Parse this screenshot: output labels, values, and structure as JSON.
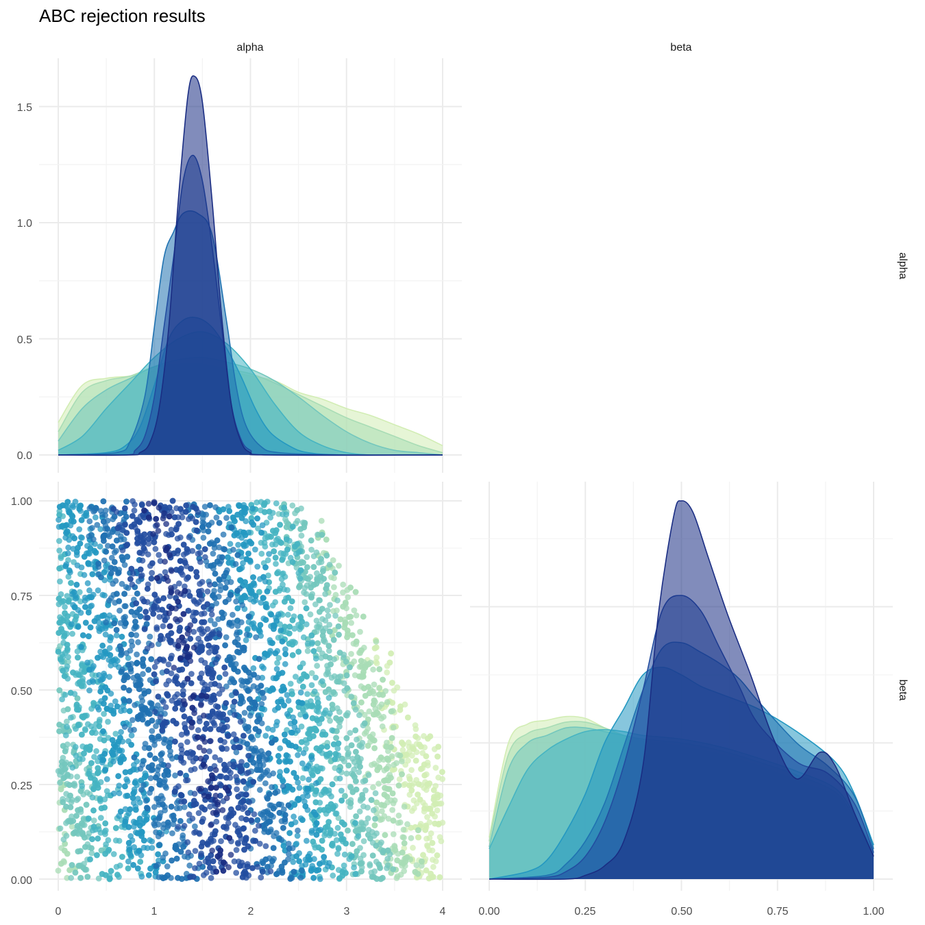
{
  "title": "ABC rejection results",
  "strips": {
    "col_alpha": "alpha",
    "col_beta": "beta",
    "row_alpha": "alpha",
    "row_beta": "beta"
  },
  "palette": [
    "#d2edb4",
    "#a8dcb5",
    "#74c7bd",
    "#45b4c2",
    "#2498c1",
    "#2072b1",
    "#234da0",
    "#1a2d83"
  ],
  "chart_data": [
    {
      "panel": "alpha-density",
      "type": "area",
      "xlim": [
        0,
        4
      ],
      "ylim": [
        0,
        1.65
      ],
      "x_ticks": [
        "0",
        "1",
        "2",
        "3",
        "4"
      ],
      "y_ticks": [
        "0.0",
        "0.5",
        "1.0",
        "1.5"
      ],
      "series": [
        {
          "x": [
            0,
            0.25,
            0.5,
            0.75,
            1,
            1.25,
            1.5,
            1.75,
            2,
            2.25,
            2.5,
            2.75,
            3,
            3.25,
            3.5,
            3.75,
            4
          ],
          "y": [
            0.14,
            0.3,
            0.33,
            0.34,
            0.36,
            0.37,
            0.37,
            0.36,
            0.34,
            0.32,
            0.27,
            0.24,
            0.2,
            0.17,
            0.13,
            0.09,
            0.04
          ]
        },
        {
          "x": [
            0,
            0.25,
            0.5,
            0.75,
            1,
            1.25,
            1.5,
            1.75,
            2,
            2.25,
            2.5,
            2.75,
            3,
            3.25,
            3.5,
            3.75,
            4
          ],
          "y": [
            0.1,
            0.27,
            0.32,
            0.34,
            0.38,
            0.39,
            0.39,
            0.37,
            0.35,
            0.31,
            0.26,
            0.21,
            0.16,
            0.12,
            0.08,
            0.04,
            0.01
          ]
        },
        {
          "x": [
            0,
            0.25,
            0.5,
            0.75,
            1,
            1.25,
            1.5,
            1.75,
            2,
            2.25,
            2.5,
            2.75,
            3,
            3.25,
            3.5,
            3.75,
            4
          ],
          "y": [
            0.06,
            0.2,
            0.28,
            0.33,
            0.38,
            0.41,
            0.42,
            0.4,
            0.37,
            0.32,
            0.25,
            0.17,
            0.1,
            0.05,
            0.02,
            0.01,
            0
          ]
        },
        {
          "x": [
            0,
            0.25,
            0.5,
            0.75,
            1,
            1.25,
            1.5,
            1.75,
            2,
            2.25,
            2.5,
            2.75,
            3,
            3.25,
            3.5,
            3.75,
            4
          ],
          "y": [
            0.02,
            0.08,
            0.2,
            0.31,
            0.42,
            0.5,
            0.53,
            0.48,
            0.37,
            0.22,
            0.1,
            0.04,
            0.01,
            0,
            0,
            0,
            0
          ]
        },
        {
          "x": [
            0,
            0.5,
            0.7,
            0.85,
            1,
            1.15,
            1.3,
            1.45,
            1.6,
            1.75,
            1.9,
            2.05,
            2.2,
            2.4,
            2.6,
            3,
            4
          ],
          "y": [
            0,
            0.01,
            0.04,
            0.12,
            0.3,
            0.5,
            0.58,
            0.59,
            0.55,
            0.46,
            0.34,
            0.2,
            0.1,
            0.04,
            0.01,
            0,
            0
          ]
        },
        {
          "x": [
            0,
            0.6,
            0.75,
            0.9,
            1,
            1.1,
            1.2,
            1.3,
            1.45,
            1.6,
            1.75,
            1.85,
            1.95,
            2.1,
            2.3,
            3,
            4
          ],
          "y": [
            0,
            0.01,
            0.06,
            0.25,
            0.55,
            0.85,
            0.96,
            1.04,
            1.04,
            0.95,
            0.58,
            0.3,
            0.13,
            0.04,
            0.01,
            0,
            0
          ]
        },
        {
          "x": [
            0,
            0.7,
            0.8,
            0.9,
            1,
            1.1,
            1.2,
            1.3,
            1.4,
            1.5,
            1.6,
            1.7,
            1.8,
            1.9,
            2,
            2.2,
            4
          ],
          "y": [
            0,
            0,
            0.02,
            0.08,
            0.25,
            0.55,
            0.85,
            1.18,
            1.29,
            1.18,
            0.9,
            0.55,
            0.22,
            0.07,
            0.02,
            0,
            0
          ]
        },
        {
          "x": [
            0,
            0.75,
            0.85,
            0.95,
            1.05,
            1.15,
            1.25,
            1.35,
            1.42,
            1.5,
            1.6,
            1.7,
            1.8,
            1.9,
            2,
            2.2,
            4
          ],
          "y": [
            0,
            0,
            0.01,
            0.05,
            0.2,
            0.55,
            1.1,
            1.55,
            1.63,
            1.52,
            1.1,
            0.6,
            0.22,
            0.06,
            0.01,
            0,
            0
          ]
        }
      ]
    },
    {
      "panel": "beta-density",
      "type": "area",
      "xlim": [
        0,
        1
      ],
      "ylim": [
        0,
        2.0
      ],
      "x_ticks": [
        "0.00",
        "0.25",
        "0.50",
        "0.75",
        "1.00"
      ],
      "series": [
        {
          "x": [
            0,
            0.05,
            0.1,
            0.15,
            0.2,
            0.25,
            0.3,
            0.35,
            0.4,
            0.5,
            0.6,
            0.7,
            0.8,
            0.9,
            0.95,
            1
          ],
          "y": [
            0.22,
            0.72,
            0.82,
            0.84,
            0.86,
            0.85,
            0.8,
            0.76,
            0.72,
            0.68,
            0.64,
            0.58,
            0.5,
            0.42,
            0.3,
            0.12
          ]
        },
        {
          "x": [
            0,
            0.05,
            0.1,
            0.15,
            0.2,
            0.25,
            0.3,
            0.35,
            0.4,
            0.5,
            0.6,
            0.7,
            0.8,
            0.9,
            0.95,
            1
          ],
          "y": [
            0.2,
            0.66,
            0.77,
            0.8,
            0.83,
            0.83,
            0.8,
            0.76,
            0.73,
            0.7,
            0.66,
            0.6,
            0.52,
            0.44,
            0.3,
            0.12
          ]
        },
        {
          "x": [
            0,
            0.05,
            0.1,
            0.15,
            0.2,
            0.25,
            0.3,
            0.35,
            0.4,
            0.5,
            0.6,
            0.7,
            0.8,
            0.9,
            0.95,
            1
          ],
          "y": [
            0.17,
            0.58,
            0.72,
            0.76,
            0.8,
            0.8,
            0.78,
            0.76,
            0.74,
            0.72,
            0.68,
            0.62,
            0.55,
            0.46,
            0.32,
            0.12
          ]
        },
        {
          "x": [
            0,
            0.05,
            0.1,
            0.15,
            0.2,
            0.25,
            0.3,
            0.35,
            0.4,
            0.5,
            0.6,
            0.7,
            0.8,
            0.9,
            0.95,
            1
          ],
          "y": [
            0.16,
            0.38,
            0.58,
            0.68,
            0.74,
            0.78,
            0.79,
            0.78,
            0.76,
            0.74,
            0.7,
            0.64,
            0.57,
            0.48,
            0.34,
            0.14
          ]
        },
        {
          "x": [
            0,
            0.1,
            0.15,
            0.2,
            0.25,
            0.3,
            0.35,
            0.4,
            0.45,
            0.5,
            0.55,
            0.6,
            0.7,
            0.8,
            0.9,
            0.95,
            1
          ],
          "y": [
            0,
            0.04,
            0.1,
            0.25,
            0.45,
            0.72,
            0.9,
            1.08,
            1.12,
            1.08,
            1.02,
            0.98,
            0.9,
            0.78,
            0.62,
            0.45,
            0.18
          ]
        },
        {
          "x": [
            0,
            0.15,
            0.2,
            0.25,
            0.3,
            0.35,
            0.4,
            0.45,
            0.5,
            0.55,
            0.6,
            0.65,
            0.7,
            0.8,
            0.88,
            0.95,
            1
          ],
          "y": [
            0,
            0.02,
            0.08,
            0.2,
            0.4,
            0.7,
            1.0,
            1.22,
            1.25,
            1.2,
            1.14,
            1.06,
            0.94,
            0.72,
            0.6,
            0.44,
            0.16
          ]
        },
        {
          "x": [
            0,
            0.15,
            0.2,
            0.25,
            0.3,
            0.35,
            0.4,
            0.45,
            0.5,
            0.55,
            0.6,
            0.65,
            0.7,
            0.8,
            0.88,
            0.95,
            1
          ],
          "y": [
            0,
            0.01,
            0.04,
            0.12,
            0.3,
            0.6,
            1.0,
            1.42,
            1.5,
            1.42,
            1.22,
            1.02,
            0.82,
            0.62,
            0.56,
            0.4,
            0.14
          ]
        },
        {
          "x": [
            0,
            0.2,
            0.25,
            0.3,
            0.35,
            0.4,
            0.44,
            0.48,
            0.5,
            0.53,
            0.57,
            0.62,
            0.68,
            0.74,
            0.8,
            0.86,
            0.9,
            0.95,
            1
          ],
          "y": [
            0,
            0,
            0.02,
            0.07,
            0.2,
            0.6,
            1.4,
            1.92,
            2.0,
            1.94,
            1.7,
            1.4,
            1.08,
            0.74,
            0.53,
            0.67,
            0.6,
            0.35,
            0.12
          ]
        }
      ]
    },
    {
      "panel": "alpha-beta-scatter",
      "type": "scatter",
      "xlim": [
        0,
        4
      ],
      "ylim": [
        0,
        1
      ],
      "x_ticks": [
        "0",
        "1",
        "2",
        "3",
        "4"
      ],
      "y_ticks": [
        "0.00",
        "0.25",
        "0.50",
        "0.75",
        "1.00"
      ],
      "x_label": "alpha",
      "y_label": "beta",
      "description_points": "uniform cloud, alpha 0-4 and beta 0-1, truncated where alpha+2*beta > 4.5; color darkens near ridge alpha ~ 1.8 - 0.8*beta"
    }
  ]
}
